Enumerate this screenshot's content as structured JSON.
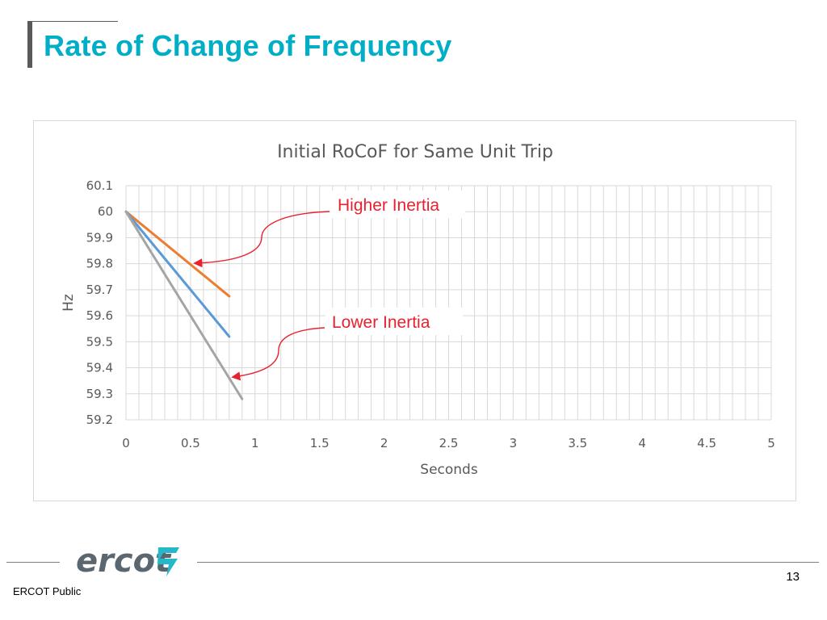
{
  "slide": {
    "title": "Rate of Change of Frequency",
    "footer_label": "ERCOT Public",
    "page_number": "13",
    "logo_text": "ercot"
  },
  "colors": {
    "title": "#00aec7",
    "higher_inertia": "#ed7d31",
    "middle": "#5b9bd5",
    "lower_inertia": "#a5a5a5",
    "annotation": "#e8212e",
    "grid": "#d9d9d9"
  },
  "chart_data": {
    "type": "line",
    "title": "Initial RoCoF for Same Unit Trip",
    "xlabel": "Seconds",
    "ylabel": "Hz",
    "xlim": [
      0,
      5
    ],
    "ylim": [
      59.2,
      60.1
    ],
    "x_ticks": [
      "0",
      "0.5",
      "1",
      "1.5",
      "2",
      "2.5",
      "3",
      "3.5",
      "4",
      "4.5",
      "5"
    ],
    "y_ticks": [
      "60.1",
      "60",
      "59.9",
      "59.8",
      "59.7",
      "59.6",
      "59.5",
      "59.4",
      "59.3",
      "59.2"
    ],
    "x_minor_step": 0.1,
    "y_major_step": 0.1,
    "grid": true,
    "legend": "none",
    "series": [
      {
        "color": "#ed7d31",
        "x": [
          0,
          0.8
        ],
        "y": [
          60.0,
          59.675
        ]
      },
      {
        "color": "#5b9bd5",
        "x": [
          0,
          0.2,
          0.5,
          0.8
        ],
        "y": [
          60.0,
          59.88,
          59.7,
          59.52
        ]
      },
      {
        "color": "#a5a5a5",
        "x": [
          0,
          0.9
        ],
        "y": [
          60.0,
          59.28
        ]
      }
    ],
    "annotations": [
      {
        "text": "Higher Inertia",
        "target_x": 0.5,
        "target_y": 59.8
      },
      {
        "text": "Lower Inertia",
        "target_x": 0.8,
        "target_y": 59.38
      }
    ]
  }
}
